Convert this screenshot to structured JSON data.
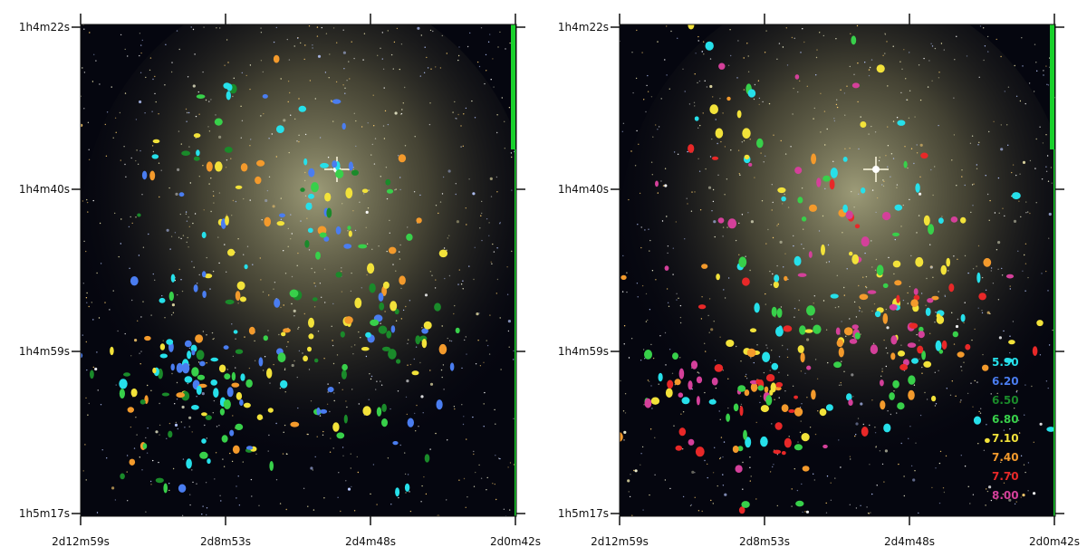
{
  "panels": [
    {
      "id": "left",
      "y_ticks": [
        "1h4m22s",
        "1h4m40s",
        "1h4m59s",
        "1h5m17s"
      ],
      "x_ticks": [
        "2d12m59s",
        "2d8m53s",
        "2d4m48s",
        "2d0m42s"
      ]
    },
    {
      "id": "right",
      "y_ticks": [
        "1h4m22s",
        "1h4m40s",
        "1h4m59s",
        "1h5m17s"
      ],
      "x_ticks": [
        "2d12m59s",
        "2d8m53s",
        "2d4m48s",
        "2d0m42s"
      ],
      "legend": [
        {
          "label": "5.90",
          "color": "#26e0ea"
        },
        {
          "label": "6.20",
          "color": "#4a7df0"
        },
        {
          "label": "6.50",
          "color": "#1a8a2a"
        },
        {
          "label": "6.80",
          "color": "#38d04a"
        },
        {
          "label": "7.10",
          "color": "#f2e23a"
        },
        {
          "label": "7.40",
          "color": "#f39a2c"
        },
        {
          "label": "7.70",
          "color": "#e82828"
        },
        {
          "label": "8.00",
          "color": "#d4409a"
        }
      ]
    }
  ],
  "colors": {
    "sky_dark": "#05060f",
    "galaxy_glow": "#8f8a5e",
    "frame": "#111111",
    "green_bar": "#19d12b"
  }
}
